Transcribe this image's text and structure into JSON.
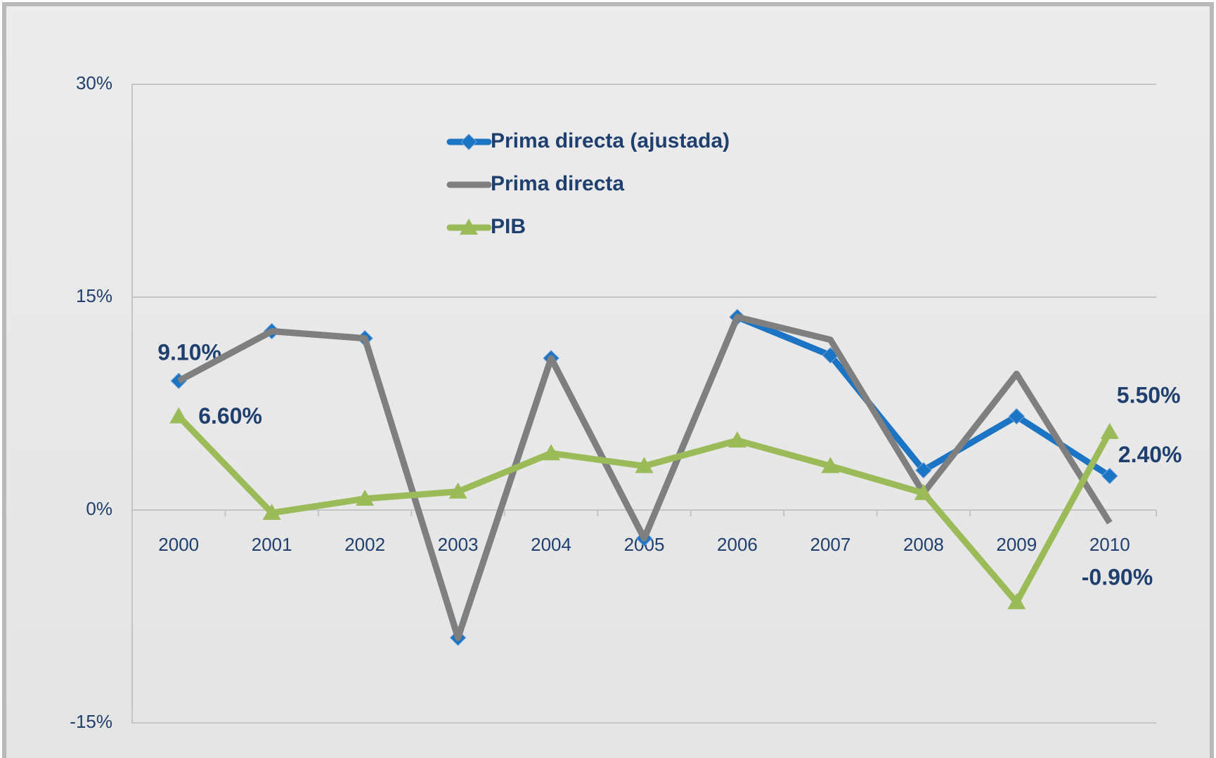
{
  "chart_data": {
    "type": "line",
    "categories": [
      "2000",
      "2001",
      "2002",
      "2003",
      "2004",
      "2005",
      "2006",
      "2007",
      "2008",
      "2009",
      "2010"
    ],
    "series": [
      {
        "name": "Prima directa (ajustada)",
        "color": "#1b75c4",
        "marker": "diamond",
        "values": [
          9.1,
          12.6,
          12.1,
          -9.0,
          10.7,
          -2.0,
          13.6,
          10.9,
          2.8,
          6.6,
          2.4
        ],
        "value_labels": [
          "9.10%",
          null,
          null,
          null,
          null,
          null,
          null,
          null,
          null,
          null,
          "2.40%"
        ]
      },
      {
        "name": "Prima directa",
        "color": "#7f7f7f",
        "marker": "none",
        "values": [
          9.1,
          12.6,
          12.1,
          -9.0,
          10.7,
          -2.0,
          13.6,
          12.0,
          1.2,
          9.6,
          -0.9
        ],
        "value_labels": [
          null,
          null,
          null,
          null,
          null,
          null,
          null,
          null,
          null,
          null,
          "-0.90%"
        ]
      },
      {
        "name": "PIB",
        "color": "#9bbb59",
        "marker": "triangle",
        "values": [
          6.6,
          -0.2,
          0.8,
          1.3,
          4.0,
          3.1,
          4.9,
          3.1,
          1.2,
          -6.5,
          5.5
        ],
        "value_labels": [
          "6.60%",
          null,
          null,
          null,
          null,
          null,
          null,
          null,
          null,
          null,
          "5.50%"
        ]
      }
    ],
    "ylim": [
      -15,
      30
    ],
    "yticks": [
      {
        "value": -15,
        "label": "-15%"
      },
      {
        "value": 0,
        "label": "0%"
      },
      {
        "value": 15,
        "label": "15%"
      },
      {
        "value": 30,
        "label": "30%"
      }
    ],
    "grid": true,
    "legend": "top"
  }
}
